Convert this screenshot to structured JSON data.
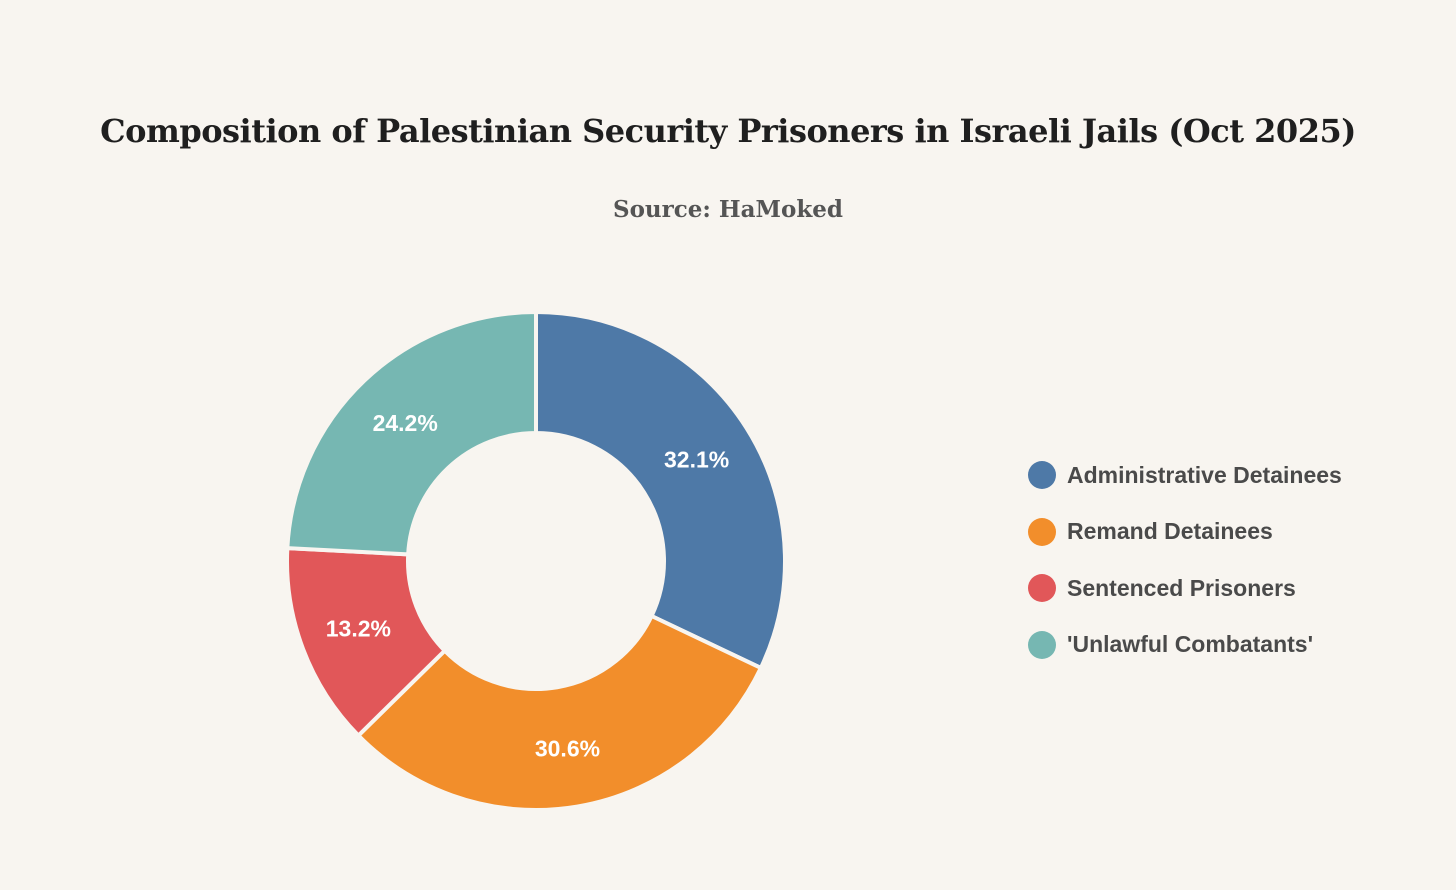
{
  "chart_data": {
    "type": "pie",
    "title": "Composition of Palestinian Security Prisoners in Israeli Jails (Oct 2025)",
    "subtitle": "Source: HaMoked",
    "donut": true,
    "start_angle_deg": 0,
    "direction": "clockwise",
    "legend_position": "right",
    "slices": [
      {
        "label": "Administrative Detainees",
        "value": 32.1,
        "display": "32.1%",
        "color": "#4e79a7"
      },
      {
        "label": "Remand Detainees",
        "value": 30.6,
        "display": "30.6%",
        "color": "#f28e2b"
      },
      {
        "label": "Sentenced Prisoners",
        "value": 13.2,
        "display": "13.2%",
        "color": "#e15759"
      },
      {
        "label": "'Unlawful Combatants'",
        "value": 24.2,
        "display": "24.2%",
        "color": "#76b7b2"
      }
    ]
  }
}
